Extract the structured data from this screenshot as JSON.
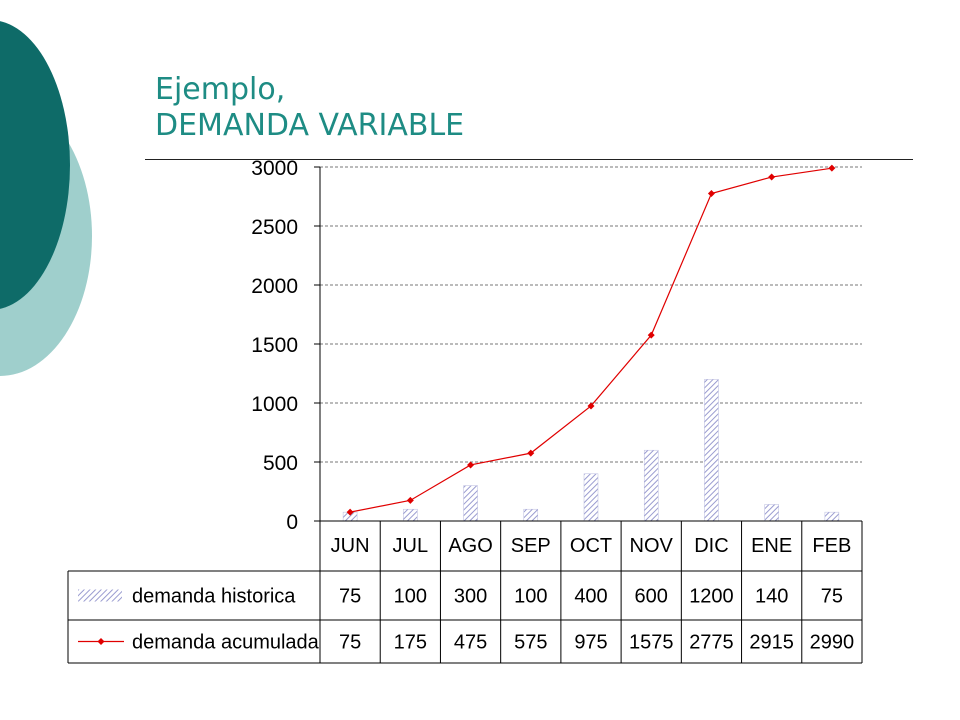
{
  "slide": {
    "title_line1": "Ejemplo,",
    "title_line2": "DEMANDA VARIABLE",
    "accent_dark": "#0e6b68",
    "accent_light": "#9fcfcc"
  },
  "chart_data": {
    "type": "bar",
    "categories": [
      "JUN",
      "JUL",
      "AGO",
      "SEP",
      "OCT",
      "NOV",
      "DIC",
      "ENE",
      "FEB"
    ],
    "ylim": [
      0,
      3000
    ],
    "yticks": [
      0,
      500,
      1000,
      1500,
      2000,
      2500,
      3000
    ],
    "grid": true,
    "legend": "data-table",
    "series": [
      {
        "name": "demanda historica",
        "type": "bar",
        "color": "#9a9cd0",
        "pattern": "diagonal-hatch",
        "values": [
          75,
          100,
          300,
          100,
          400,
          600,
          1200,
          140,
          75
        ]
      },
      {
        "name": "demanda acumulada",
        "type": "line",
        "color": "#e00000",
        "marker": "diamond",
        "values": [
          75,
          175,
          475,
          575,
          975,
          1575,
          2775,
          2915,
          2990
        ]
      }
    ]
  }
}
